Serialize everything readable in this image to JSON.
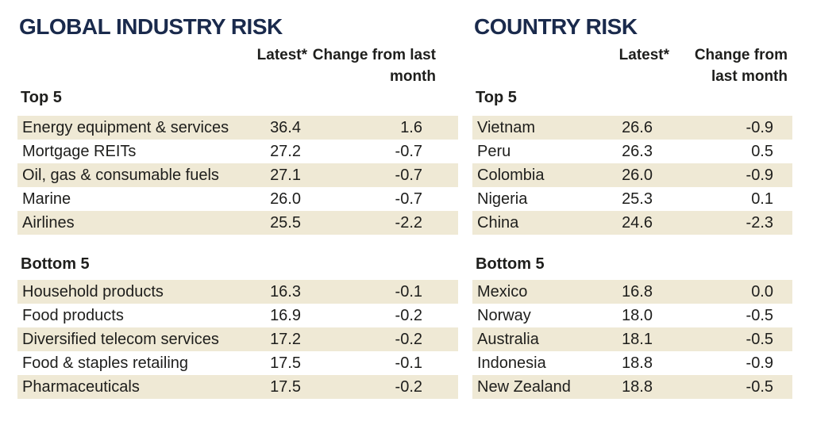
{
  "colors": {
    "title_navy": "#1a2a4c",
    "row_beige": "#efe9d5",
    "text": "#1e1e1c",
    "background": "#ffffff"
  },
  "tables": [
    {
      "title": "GLOBAL INDUSTRY RISK",
      "col_latest": "Latest*",
      "col_change": "Change from last month",
      "sections": [
        {
          "label": "Top 5",
          "rows": [
            {
              "name": "Energy equipment & services",
              "latest": "36.4",
              "change": "1.6"
            },
            {
              "name": "Mortgage REITs",
              "latest": "27.2",
              "change": "-0.7"
            },
            {
              "name": "Oil, gas & consumable fuels",
              "latest": "27.1",
              "change": "-0.7"
            },
            {
              "name": "Marine",
              "latest": "26.0",
              "change": "-0.7"
            },
            {
              "name": "Airlines",
              "latest": "25.5",
              "change": "-2.2"
            }
          ]
        },
        {
          "label": "Bottom 5",
          "rows": [
            {
              "name": "Household products",
              "latest": "16.3",
              "change": "-0.1"
            },
            {
              "name": "Food products",
              "latest": "16.9",
              "change": "-0.2"
            },
            {
              "name": "Diversified telecom services",
              "latest": "17.2",
              "change": "-0.2"
            },
            {
              "name": "Food & staples retailing",
              "latest": "17.5",
              "change": "-0.1"
            },
            {
              "name": "Pharmaceuticals",
              "latest": "17.5",
              "change": "-0.2"
            }
          ]
        }
      ]
    },
    {
      "title": "COUNTRY RISK",
      "col_latest": "Latest*",
      "col_change": "Change from last month",
      "sections": [
        {
          "label": "Top 5",
          "rows": [
            {
              "name": "Vietnam",
              "latest": "26.6",
              "change": "-0.9"
            },
            {
              "name": "Peru",
              "latest": "26.3",
              "change": "0.5"
            },
            {
              "name": "Colombia",
              "latest": "26.0",
              "change": "-0.9"
            },
            {
              "name": "Nigeria",
              "latest": "25.3",
              "change": "0.1"
            },
            {
              "name": "China",
              "latest": "24.6",
              "change": "-2.3"
            }
          ]
        },
        {
          "label": "Bottom 5",
          "rows": [
            {
              "name": "Mexico",
              "latest": "16.8",
              "change": "0.0"
            },
            {
              "name": "Norway",
              "latest": "18.0",
              "change": "-0.5"
            },
            {
              "name": "Australia",
              "latest": "18.1",
              "change": "-0.5"
            },
            {
              "name": "Indonesia",
              "latest": "18.8",
              "change": "-0.9"
            },
            {
              "name": "New Zealand",
              "latest": "18.8",
              "change": "-0.5"
            }
          ]
        }
      ]
    }
  ],
  "chart_data": [
    {
      "type": "table",
      "title": "GLOBAL INDUSTRY RISK",
      "columns": [
        "",
        "Latest*",
        "Change from last month"
      ],
      "sections": [
        {
          "label": "Top 5",
          "rows": [
            [
              "Energy equipment & services",
              36.4,
              1.6
            ],
            [
              "Mortgage REITs",
              27.2,
              -0.7
            ],
            [
              "Oil, gas & consumable fuels",
              27.1,
              -0.7
            ],
            [
              "Marine",
              26.0,
              -0.7
            ],
            [
              "Airlines",
              25.5,
              -2.2
            ]
          ]
        },
        {
          "label": "Bottom 5",
          "rows": [
            [
              "Household products",
              16.3,
              -0.1
            ],
            [
              "Food products",
              16.9,
              -0.2
            ],
            [
              "Diversified telecom services",
              17.2,
              -0.2
            ],
            [
              "Food & staples retailing",
              17.5,
              -0.1
            ],
            [
              "Pharmaceuticals",
              17.5,
              -0.2
            ]
          ]
        }
      ]
    },
    {
      "type": "table",
      "title": "COUNTRY RISK",
      "columns": [
        "",
        "Latest*",
        "Change from last month"
      ],
      "sections": [
        {
          "label": "Top 5",
          "rows": [
            [
              "Vietnam",
              26.6,
              -0.9
            ],
            [
              "Peru",
              26.3,
              0.5
            ],
            [
              "Colombia",
              26.0,
              -0.9
            ],
            [
              "Nigeria",
              25.3,
              0.1
            ],
            [
              "China",
              24.6,
              -2.3
            ]
          ]
        },
        {
          "label": "Bottom 5",
          "rows": [
            [
              "Mexico",
              16.8,
              0.0
            ],
            [
              "Norway",
              18.0,
              -0.5
            ],
            [
              "Australia",
              18.1,
              -0.5
            ],
            [
              "Indonesia",
              18.8,
              -0.9
            ],
            [
              "New Zealand",
              18.8,
              -0.5
            ]
          ]
        }
      ]
    }
  ]
}
